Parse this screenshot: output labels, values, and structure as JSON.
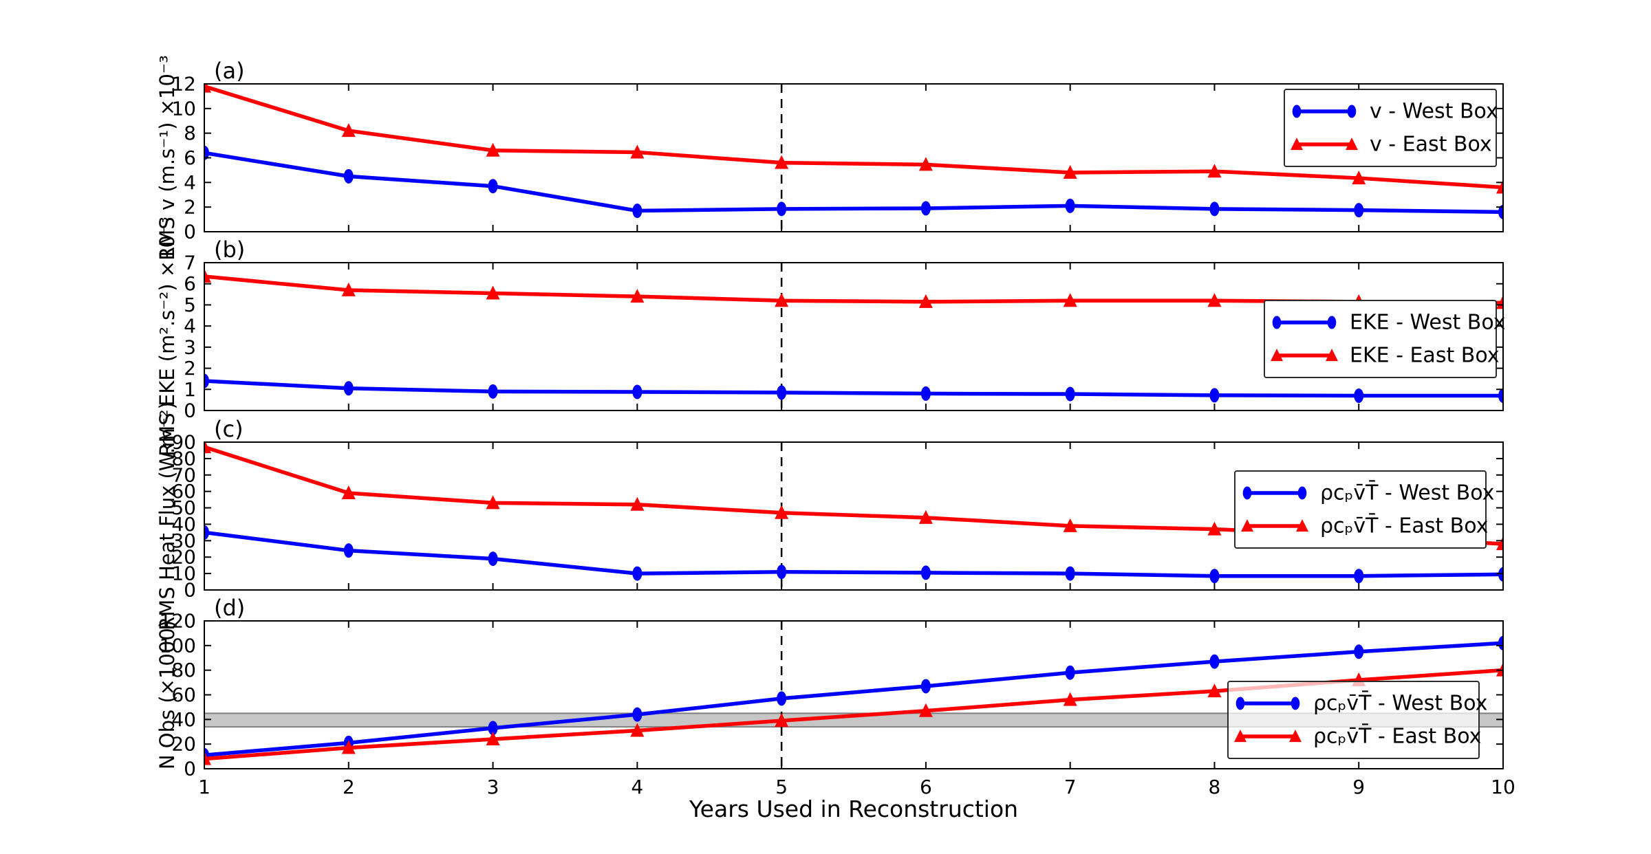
{
  "figure": {
    "xlabel": "Years Used in Reconstruction",
    "x_ticks": [
      1,
      2,
      3,
      4,
      5,
      6,
      7,
      8,
      9,
      10
    ],
    "colors": {
      "west": "#0000ff",
      "east": "#ff0000",
      "band_fill": "#c6c6c6",
      "band_edge": "#7f7f7f",
      "axis": "#000000",
      "dashed_line": "#000000"
    }
  },
  "chart_data": [
    {
      "type": "line",
      "panel_label": "(a)",
      "ylabel": "RMS v (m.s⁻¹) ×10⁻³",
      "xlim": [
        1,
        10
      ],
      "ylim": [
        0,
        12
      ],
      "yticks": [
        0,
        2,
        4,
        6,
        8,
        10,
        12
      ],
      "x": [
        1,
        2,
        3,
        4,
        5,
        6,
        7,
        8,
        9,
        10
      ],
      "vline_x": 5,
      "legend_position": "upper-right",
      "series": [
        {
          "label": "v - West Box",
          "color": "#0000ff",
          "marker": "circle",
          "values": [
            6.4,
            4.5,
            3.7,
            1.7,
            1.85,
            1.9,
            2.1,
            1.85,
            1.75,
            1.6
          ]
        },
        {
          "label": "v - East Box",
          "color": "#ff0000",
          "marker": "triangle",
          "values": [
            11.8,
            8.2,
            6.6,
            6.45,
            5.6,
            5.45,
            4.8,
            4.9,
            4.35,
            3.6
          ]
        }
      ]
    },
    {
      "type": "line",
      "panel_label": "(b)",
      "ylabel": "RMS EKE (m².s⁻²) ×10⁻³",
      "xlim": [
        1,
        10
      ],
      "ylim": [
        0,
        7
      ],
      "yticks": [
        0,
        1,
        2,
        3,
        4,
        5,
        6,
        7
      ],
      "x": [
        1,
        2,
        3,
        4,
        5,
        6,
        7,
        8,
        9,
        10
      ],
      "vline_x": 5,
      "legend_position": "center-right",
      "series": [
        {
          "label": "EKE - West Box",
          "color": "#0000ff",
          "marker": "circle",
          "values": [
            1.4,
            1.05,
            0.9,
            0.88,
            0.85,
            0.8,
            0.78,
            0.72,
            0.7,
            0.7
          ]
        },
        {
          "label": "EKE - East Box",
          "color": "#ff0000",
          "marker": "triangle",
          "values": [
            6.35,
            5.7,
            5.55,
            5.4,
            5.2,
            5.15,
            5.2,
            5.2,
            5.15,
            5.1
          ]
        }
      ]
    },
    {
      "type": "line",
      "panel_label": "(c)",
      "ylabel": "RMS Heat Flux (W.m⁻²)",
      "xlim": [
        1,
        10
      ],
      "ylim": [
        0,
        90
      ],
      "yticks": [
        0,
        10,
        20,
        30,
        40,
        50,
        60,
        70,
        80,
        90
      ],
      "x": [
        1,
        2,
        3,
        4,
        5,
        6,
        7,
        8,
        9,
        10
      ],
      "vline_x": 5,
      "legend_position": "upper-right",
      "series": [
        {
          "label": "ρcₚv̄T̄ - West Box",
          "color": "#0000ff",
          "marker": "circle",
          "values": [
            35,
            24,
            19,
            10,
            11,
            10.5,
            10,
            8.5,
            8.5,
            9.5
          ]
        },
        {
          "label": "ρcₚv̄T̄ - East Box",
          "color": "#ff0000",
          "marker": "triangle",
          "values": [
            87,
            59,
            53,
            52,
            47,
            44,
            39,
            37,
            33,
            28
          ]
        }
      ]
    },
    {
      "type": "line",
      "panel_label": "(d)",
      "ylabel": "N Obs (×1000)",
      "xlim": [
        1,
        10
      ],
      "ylim": [
        0,
        120
      ],
      "yticks": [
        0,
        20,
        40,
        60,
        80,
        100,
        120
      ],
      "x": [
        1,
        2,
        3,
        4,
        5,
        6,
        7,
        8,
        9,
        10
      ],
      "vline_x": 5,
      "show_x_tick_labels": true,
      "band": {
        "from": 34,
        "to": 45
      },
      "legend_position": "center-right",
      "series": [
        {
          "label": "ρcₚv̄T̄ - West Box",
          "color": "#0000ff",
          "marker": "circle",
          "values": [
            11,
            21,
            33,
            44,
            57,
            67,
            78,
            87,
            95,
            102
          ]
        },
        {
          "label": "ρcₚv̄T̄ - East Box",
          "color": "#ff0000",
          "marker": "triangle",
          "values": [
            8,
            17,
            24,
            31,
            39,
            47,
            56,
            63,
            72,
            80
          ]
        }
      ]
    }
  ]
}
